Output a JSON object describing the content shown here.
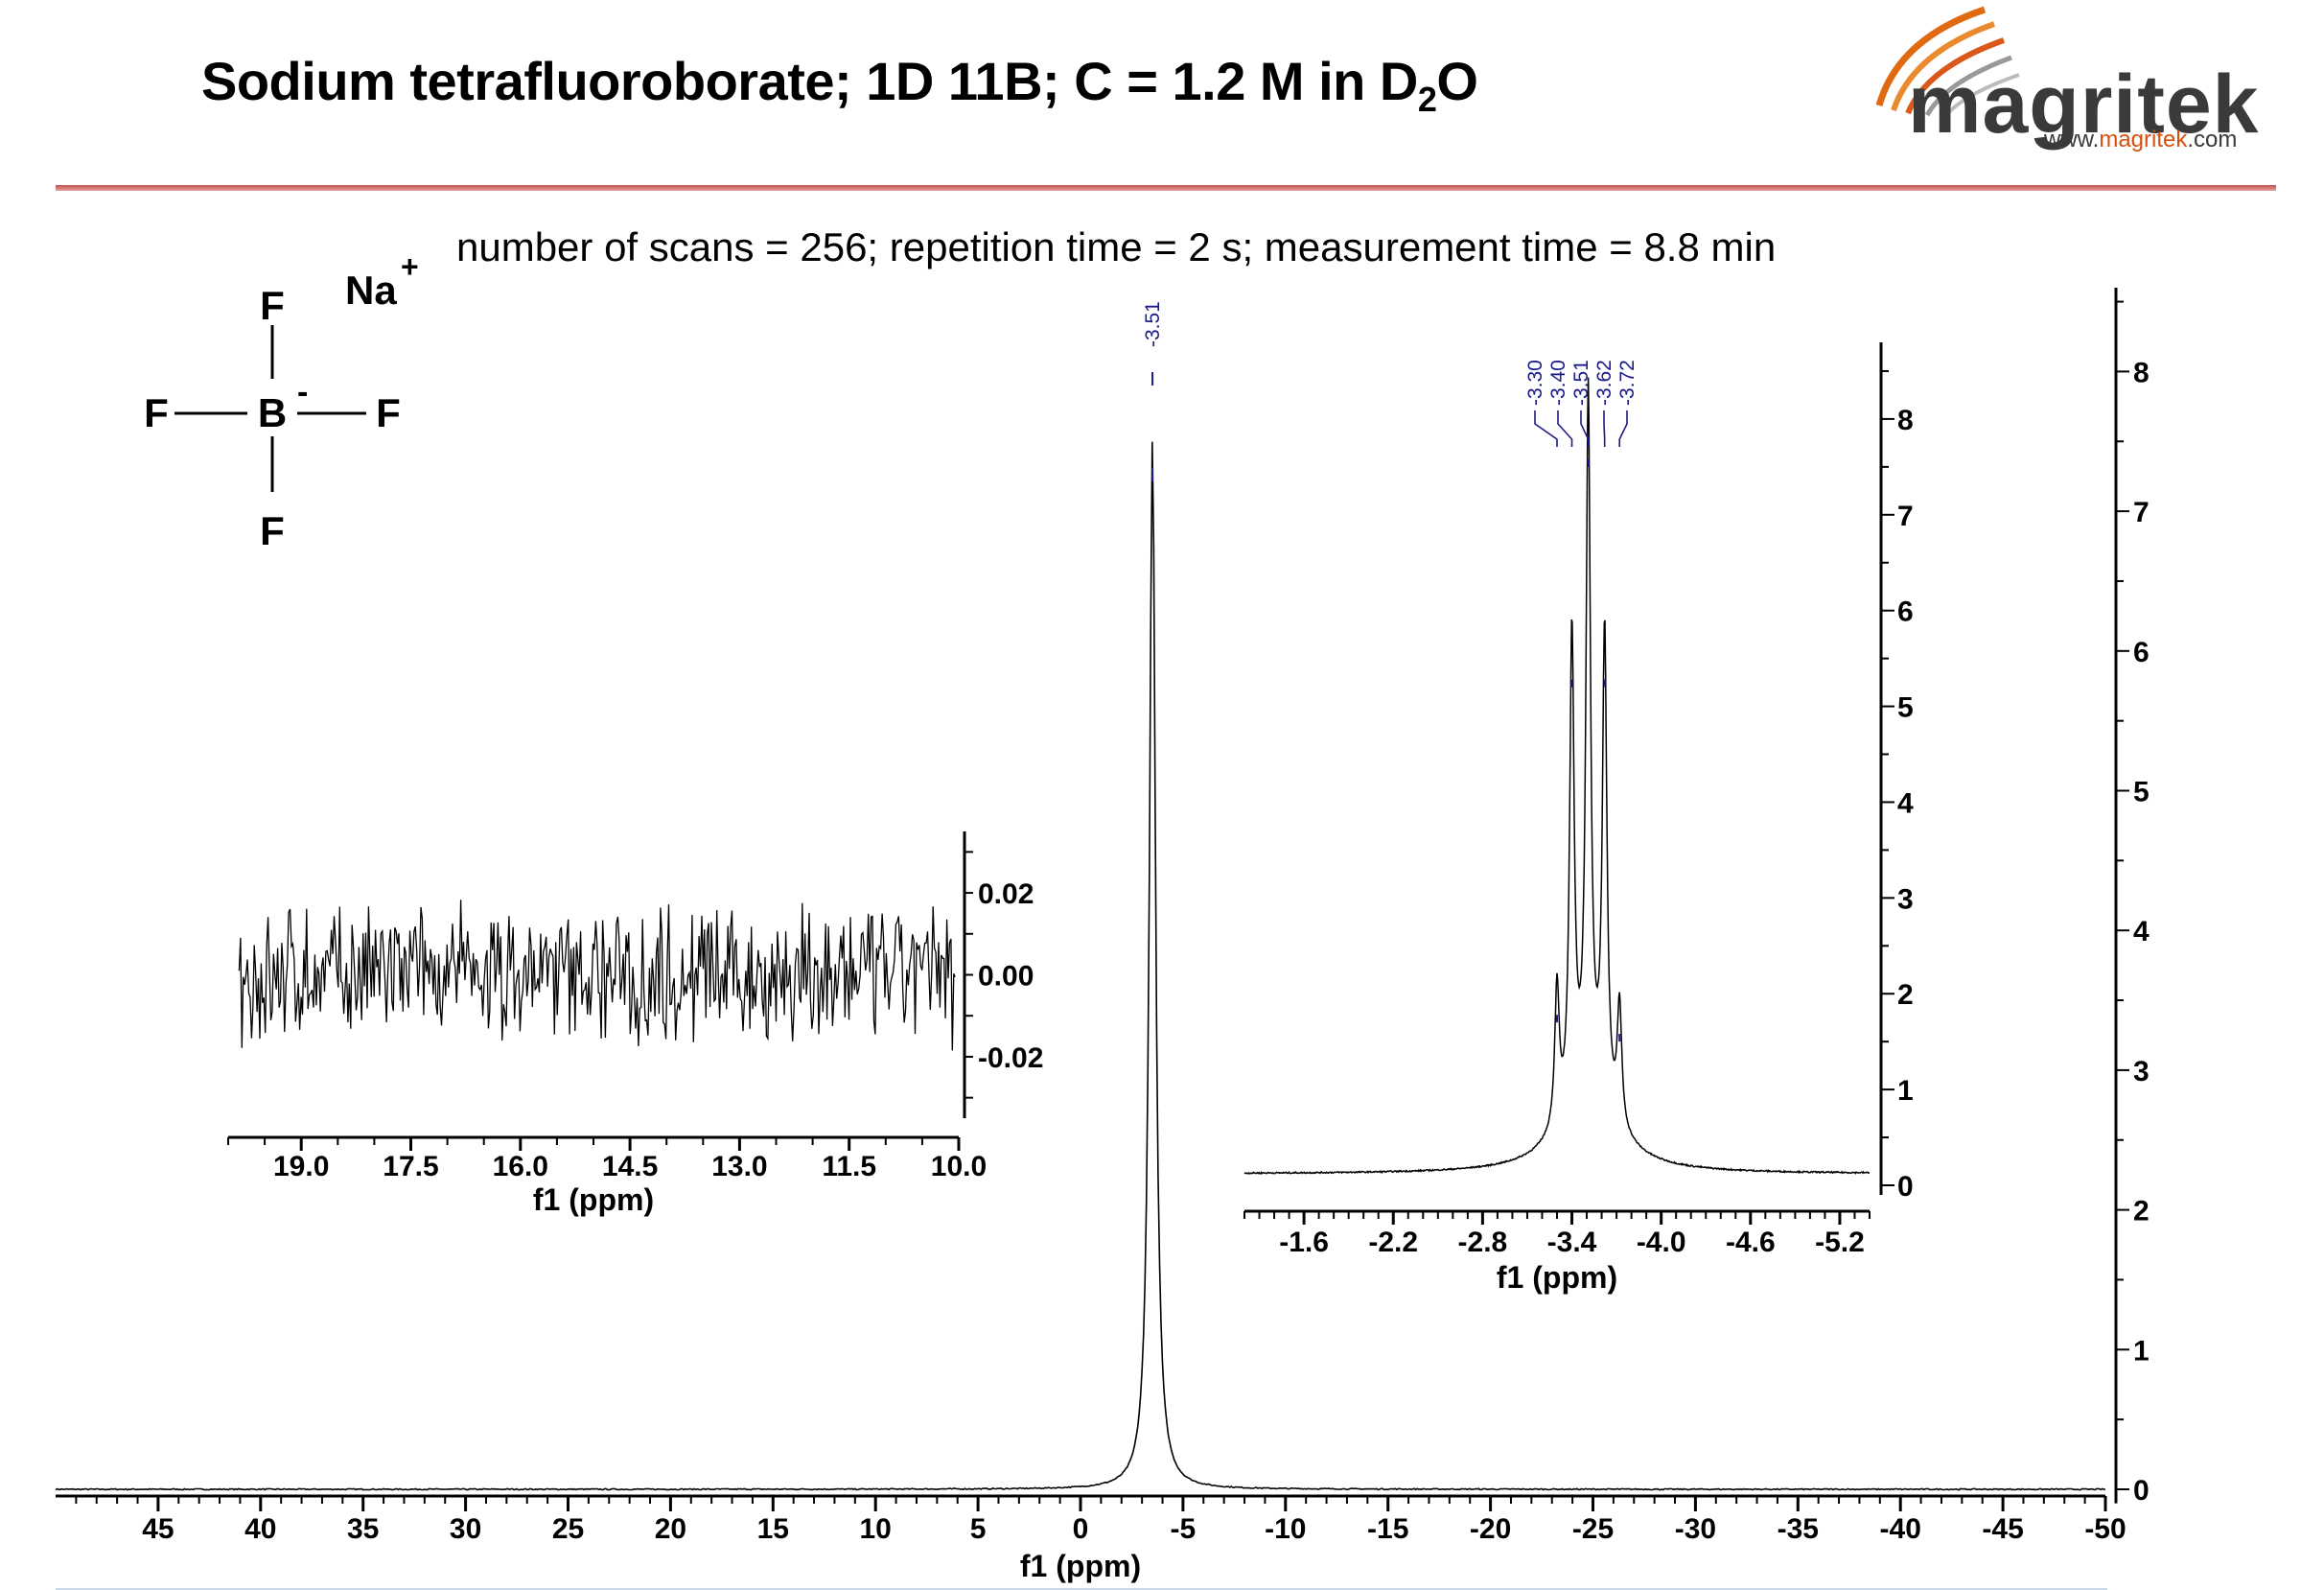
{
  "header": {
    "title_main": "Sodium tetrafluoroborate; 1D 11B; C = 1.2 M in D",
    "title_sub": "2",
    "title_end": "O",
    "logo_word": "magritek",
    "logo_url_prefix": "www.",
    "logo_url_accent": "magritek",
    "logo_url_suffix": ".com"
  },
  "acquisition": "number of scans = 256; repetition time = 2 s; measurement time = 8.8 min",
  "molecule": {
    "atoms": [
      "F",
      "F",
      "F",
      "F",
      "B"
    ],
    "charge_minus": "-",
    "counter_ion": "Na",
    "counter_charge": "+"
  },
  "colors": {
    "accent_rule": "#c0504d",
    "peak_label": "#1a1a8c",
    "logo_orange": "#e06a12",
    "logo_grey": "#3a3a3a"
  },
  "chart_data": [
    {
      "type": "line",
      "name": "main-spectrum",
      "xlabel": "f1 (ppm)",
      "xlim": [
        50,
        -50
      ],
      "ylim": [
        0,
        8.6
      ],
      "x_ticks": [
        45,
        40,
        35,
        30,
        25,
        20,
        15,
        10,
        5,
        0,
        -5,
        -10,
        -15,
        -20,
        -25,
        -30,
        -35,
        -40,
        -45,
        -50
      ],
      "x_tick_labels": [
        "45",
        "40",
        "35",
        "30",
        "25",
        "20",
        "15",
        "10",
        "5",
        "0",
        "-5",
        "-10",
        "-15",
        "-20",
        "-25",
        "-30",
        "-35",
        "-40",
        "-45",
        "-50"
      ],
      "y_ticks": [
        0,
        1,
        2,
        3,
        4,
        5,
        6,
        7,
        8
      ],
      "y_tick_labels": [
        "0",
        "1",
        "2",
        "3",
        "4",
        "5",
        "6",
        "7",
        "8"
      ],
      "peak_labels": [
        "-3.51"
      ],
      "peaks": [
        {
          "x": -3.51,
          "y": 7.5
        }
      ]
    },
    {
      "type": "line",
      "name": "noise-inset",
      "xlabel": "f1 (ppm)",
      "xlim": [
        20.0,
        10.0
      ],
      "ylim": [
        -0.035,
        0.035
      ],
      "x_ticks": [
        19.0,
        17.5,
        16.0,
        14.5,
        13.0,
        11.5,
        10.0
      ],
      "x_tick_labels": [
        "19.0",
        "17.5",
        "16.0",
        "14.5",
        "13.0",
        "11.5",
        "10.0"
      ],
      "y_ticks": [
        0.02,
        0.0,
        -0.02
      ],
      "y_tick_labels": [
        "0.02",
        "0.00",
        "-0.02"
      ]
    },
    {
      "type": "line",
      "name": "zoom-inset",
      "xlabel": "f1 (ppm)",
      "xlim": [
        -1.2,
        -5.4
      ],
      "ylim": [
        0,
        8.8
      ],
      "x_ticks": [
        -1.6,
        -2.2,
        -2.8,
        -3.4,
        -4.0,
        -4.6,
        -5.2
      ],
      "x_tick_labels": [
        "-1.6",
        "-2.2",
        "-2.8",
        "-3.4",
        "-4.0",
        "-4.6",
        "-5.2"
      ],
      "y_ticks": [
        0,
        1,
        2,
        3,
        4,
        5,
        6,
        7,
        8
      ],
      "y_tick_labels": [
        "0",
        "1",
        "2",
        "3",
        "4",
        "5",
        "6",
        "7",
        "8"
      ],
      "peak_labels": [
        "-3.30",
        "-3.40",
        "-3.51",
        "-3.62",
        "-3.72"
      ],
      "peaks": [
        {
          "x": -3.3,
          "y": 1.6
        },
        {
          "x": -3.4,
          "y": 5.1
        },
        {
          "x": -3.51,
          "y": 7.4
        },
        {
          "x": -3.62,
          "y": 5.1
        },
        {
          "x": -3.72,
          "y": 1.4
        }
      ]
    }
  ]
}
